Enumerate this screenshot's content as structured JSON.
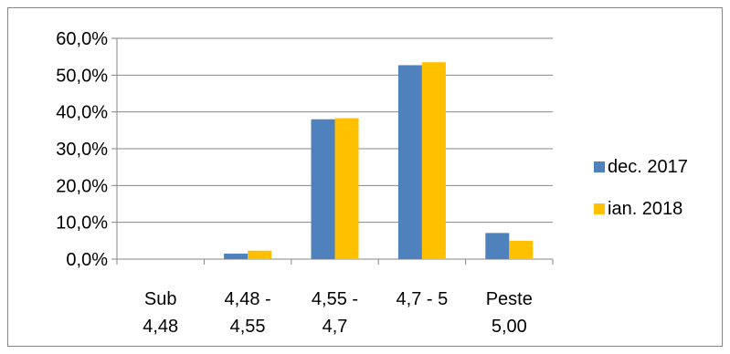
{
  "chart_data": {
    "type": "bar",
    "categories": [
      [
        "Sub",
        "4,48"
      ],
      [
        "4,48 -",
        "4,55"
      ],
      [
        "4,55 -",
        "4,7"
      ],
      [
        "4,7 - 5",
        ""
      ],
      [
        "Peste",
        "5,00"
      ]
    ],
    "series": [
      {
        "name": "dec. 2017",
        "values": [
          0.0,
          1.5,
          38.0,
          52.7,
          7.1
        ],
        "color": "#4F81BD"
      },
      {
        "name": "ian. 2018",
        "values": [
          0.0,
          2.3,
          38.3,
          53.5,
          5.0
        ],
        "color": "#FFC000"
      }
    ],
    "yticks": [
      "0,0%",
      "10,0%",
      "20,0%",
      "30,0%",
      "40,0%",
      "50,0%",
      "60,0%"
    ],
    "ylim": [
      0,
      60
    ],
    "grid": true,
    "legend": "right",
    "title": "",
    "xlabel": "",
    "ylabel": ""
  }
}
